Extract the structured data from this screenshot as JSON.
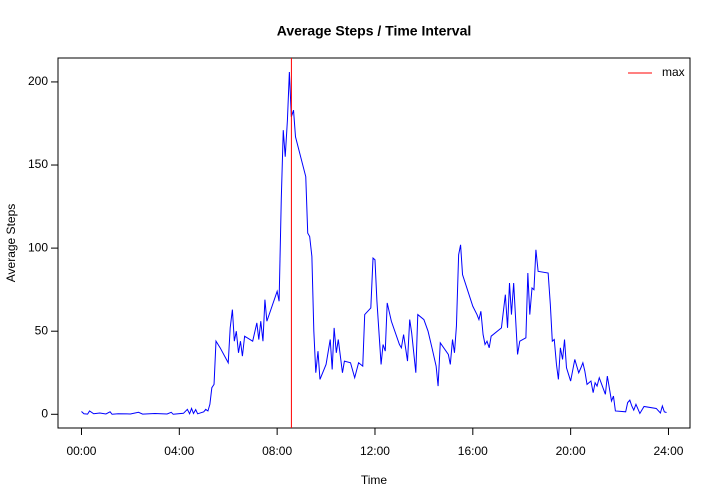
{
  "chart_data": {
    "type": "line",
    "title": "Average Steps / Time Interval",
    "xlabel": "Time",
    "ylabel": "Average Steps",
    "xlim": [
      -0.96,
      24.88
    ],
    "ylim": [
      -8.25,
      214.4
    ],
    "xticks": [
      {
        "value": 0,
        "label": "00:00"
      },
      {
        "value": 4,
        "label": "04:00"
      },
      {
        "value": 8,
        "label": "08:00"
      },
      {
        "value": 12,
        "label": "12:00"
      },
      {
        "value": 16,
        "label": "16:00"
      },
      {
        "value": 20,
        "label": "20:00"
      },
      {
        "value": 24,
        "label": "24:00"
      }
    ],
    "yticks": [
      0,
      50,
      100,
      150,
      200
    ],
    "legend": "top-right",
    "vlines": [
      {
        "name": "max",
        "x": 8.583,
        "color": "#ff0000"
      }
    ],
    "series": [
      {
        "color": "#0000ff",
        "x": [
          0.0,
          0.1,
          0.25,
          0.33,
          0.5,
          0.75,
          1.0,
          1.17,
          1.25,
          1.5,
          2.0,
          2.33,
          2.5,
          3.0,
          3.5,
          3.67,
          3.75,
          4.17,
          4.33,
          4.42,
          4.5,
          4.58,
          4.67,
          4.75,
          5.0,
          5.08,
          5.17,
          5.25,
          5.33,
          5.42,
          5.5,
          5.67,
          6.0,
          6.08,
          6.17,
          6.25,
          6.33,
          6.42,
          6.5,
          6.58,
          6.67,
          7.0,
          7.17,
          7.25,
          7.33,
          7.42,
          7.5,
          7.58,
          8.0,
          8.08,
          8.17,
          8.25,
          8.33,
          8.42,
          8.5,
          8.58,
          8.67,
          8.75,
          9.17,
          9.25,
          9.33,
          9.42,
          9.5,
          9.58,
          9.67,
          9.75,
          10.0,
          10.17,
          10.25,
          10.33,
          10.42,
          10.5,
          10.67,
          10.75,
          11.0,
          11.17,
          11.33,
          11.5,
          11.58,
          11.83,
          11.92,
          12.0,
          12.08,
          12.25,
          12.33,
          12.42,
          12.5,
          12.67,
          13.0,
          13.08,
          13.17,
          13.33,
          13.42,
          13.5,
          13.67,
          13.75,
          14.0,
          14.17,
          14.33,
          14.5,
          14.58,
          14.67,
          15.0,
          15.08,
          15.17,
          15.25,
          15.33,
          15.42,
          15.5,
          15.58,
          16.0,
          16.17,
          16.25,
          16.33,
          16.42,
          16.5,
          16.58,
          16.67,
          16.75,
          17.17,
          17.33,
          17.42,
          17.5,
          17.58,
          17.67,
          17.83,
          17.92,
          18.17,
          18.25,
          18.33,
          18.42,
          18.5,
          18.58,
          18.67,
          19.08,
          19.17,
          19.25,
          19.33,
          19.42,
          19.5,
          19.58,
          19.67,
          19.75,
          19.83,
          20.0,
          20.17,
          20.25,
          20.33,
          20.42,
          20.5,
          20.58,
          20.67,
          20.83,
          20.92,
          21.0,
          21.08,
          21.17,
          21.42,
          21.5,
          21.58,
          21.67,
          21.75,
          21.83,
          22.25,
          22.33,
          22.42,
          22.5,
          22.58,
          22.67,
          22.83,
          23.0,
          23.5,
          23.67,
          23.75,
          23.83,
          23.92
        ],
        "values": [
          1.7,
          0.3,
          0.1,
          2,
          0.3,
          0.8,
          0.2,
          1.5,
          0,
          0.3,
          0.2,
          1.2,
          0.1,
          0.5,
          0.2,
          1.2,
          0,
          0.6,
          3,
          0.3,
          3.5,
          0.5,
          2.8,
          0.3,
          1.5,
          3,
          2,
          6,
          16,
          18,
          44,
          40,
          31,
          52,
          63,
          44,
          50,
          37,
          44,
          35,
          47,
          44,
          55,
          45,
          56,
          44,
          69,
          56,
          74,
          68,
          130,
          171,
          155,
          177,
          206,
          179,
          183,
          167,
          143,
          109,
          107,
          95,
          50,
          25,
          38,
          21,
          30,
          45,
          27,
          52,
          37,
          45,
          25,
          32,
          31,
          22,
          31,
          29,
          60,
          64,
          94,
          93,
          68,
          30,
          42,
          38,
          67,
          56,
          42,
          40,
          48,
          32,
          57,
          49,
          25,
          60,
          57,
          50,
          40,
          29,
          17,
          43,
          36,
          30,
          45,
          37,
          53,
          96,
          102,
          84,
          65,
          60,
          57,
          62,
          48,
          42,
          44,
          40,
          47,
          52,
          72,
          52,
          79,
          60,
          79,
          36,
          44,
          46,
          85,
          60,
          76,
          75,
          99,
          86,
          85,
          66,
          44,
          45,
          30,
          21,
          40,
          33,
          45,
          28,
          20,
          33,
          29,
          25,
          28,
          31,
          26,
          18,
          20,
          13,
          19,
          17,
          22,
          12,
          23,
          16,
          8,
          11,
          2,
          1.5,
          7,
          8.5,
          5,
          2.5,
          6,
          0.5,
          4.7,
          3.5,
          0.8,
          5,
          1.5,
          1.1
        ]
      }
    ]
  }
}
